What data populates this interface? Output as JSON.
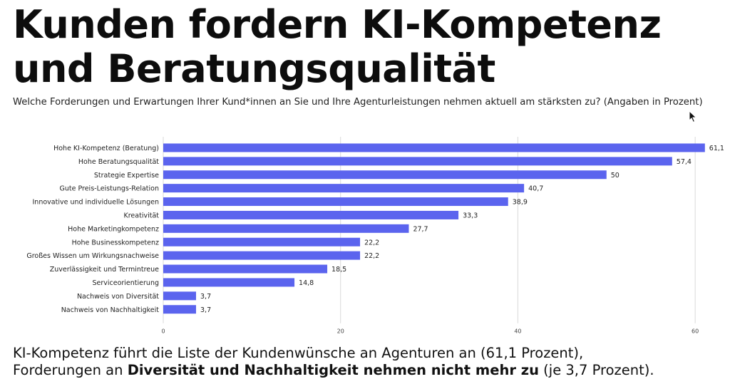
{
  "title_line1": "Kunden fordern KI-Kompetenz",
  "title_line2": "und Beratungsqualität",
  "subtitle": "Welche Forderungen und Erwartungen Ihrer Kund*innen an Sie und Ihre Agenturleistungen nehmen aktuell am stärksten zu? (Angaben in Prozent)",
  "footer": {
    "line1": "KI-Kompetenz führt die Liste der Kundenwünsche an Agenturen an (61,1 Prozent),",
    "line2_a": "Forderungen an ",
    "line2_bold": "Diversität und Nachhaltigkeit nehmen nicht mehr zu",
    "line2_b": " (je 3,7 Prozent)."
  },
  "chart_data": {
    "type": "bar",
    "orientation": "horizontal",
    "categories": [
      "Hohe KI-Kompetenz (Beratung)",
      "Hohe Beratungsqualität",
      "Strategie Expertise",
      "Gute Preis-Leistungs-Relation",
      "Innovative und individuelle Lösungen",
      "Kreativität",
      "Hohe Marketingkompetenz",
      "Hohe Businesskompetenz",
      "Großes Wissen um Wirkungsnachweise",
      "Zuverlässigkeit und Termintreue",
      "Serviceorientierung",
      "Nachweis von Diversität",
      "Nachweis von Nachhaltigkeit"
    ],
    "values": [
      61.1,
      57.4,
      50,
      40.7,
      38.9,
      33.3,
      27.7,
      22.2,
      22.2,
      18.5,
      14.8,
      3.7,
      3.7
    ],
    "value_labels": [
      "61,1",
      "57,4",
      "50",
      "40,7",
      "38,9",
      "33,3",
      "27,7",
      "22,2",
      "22,2",
      "18,5",
      "14,8",
      "3,7",
      "3,7"
    ],
    "xlim": [
      0,
      62
    ],
    "xticks": [
      0,
      20,
      40,
      60
    ],
    "grid": true,
    "bar_color": "#5b64ee",
    "grid_color": "#d9d9d9"
  }
}
